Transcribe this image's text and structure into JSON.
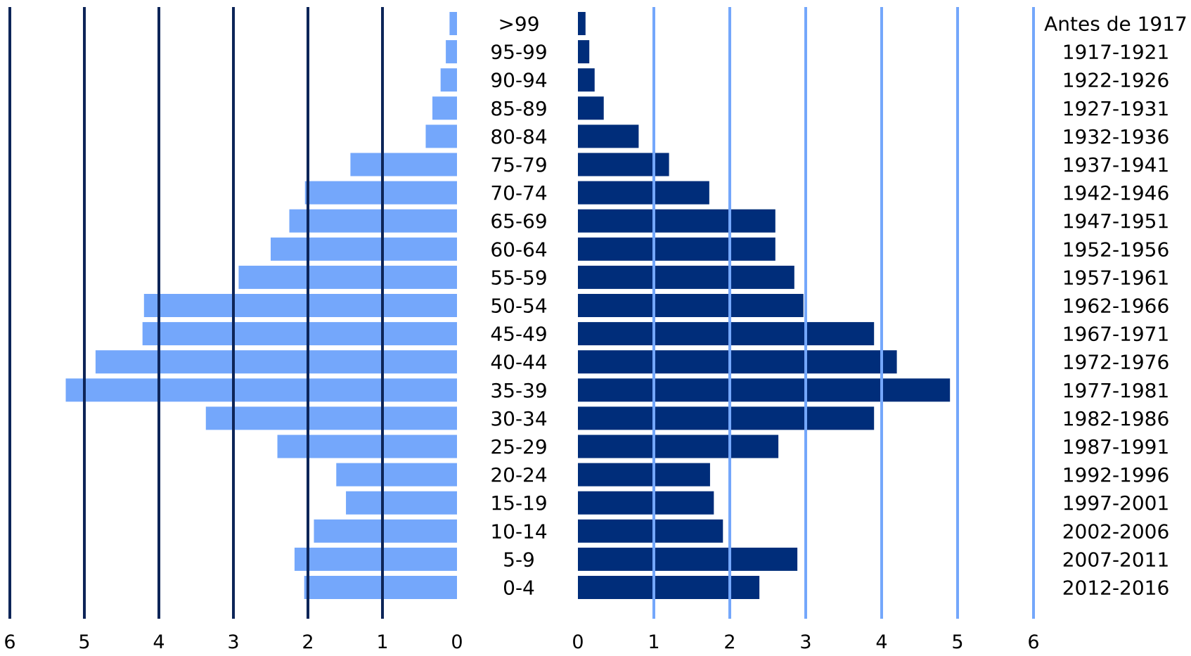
{
  "chart_data": {
    "type": "bar",
    "subtype": "population-pyramid",
    "categories": [
      ">99",
      "95-99",
      "90-94",
      "85-89",
      "80-84",
      "75-79",
      "70-74",
      "65-69",
      "60-64",
      "55-59",
      "50-54",
      "45-49",
      "40-44",
      "35-39",
      "30-34",
      "25-29",
      "20-24",
      "15-19",
      "10-14",
      "5-9",
      "0-4"
    ],
    "birth_cohorts": [
      "Antes de 1917",
      "1917-1921",
      "1922-1926",
      "1927-1931",
      "1932-1936",
      "1937-1941",
      "1942-1946",
      "1947-1951",
      "1952-1956",
      "1957-1961",
      "1962-1966",
      "1967-1971",
      "1972-1976",
      "1977-1981",
      "1982-1986",
      "1987-1991",
      "1992-1996",
      "1997-2001",
      "2002-2006",
      "2007-2011",
      "2012-2016"
    ],
    "series": [
      {
        "side": "left",
        "color": "#74a7fb",
        "values": [
          0.1,
          0.15,
          0.22,
          0.33,
          0.42,
          1.43,
          2.04,
          2.25,
          2.5,
          2.93,
          4.2,
          4.22,
          4.85,
          5.25,
          3.37,
          2.41,
          1.62,
          1.49,
          1.92,
          2.18,
          2.05
        ]
      },
      {
        "side": "right",
        "color": "#002d7a",
        "values": [
          0.1,
          0.15,
          0.22,
          0.34,
          0.8,
          1.2,
          1.73,
          2.6,
          2.6,
          2.85,
          2.97,
          3.9,
          4.2,
          4.9,
          3.9,
          2.64,
          1.74,
          1.79,
          1.91,
          2.89,
          2.39
        ]
      }
    ],
    "left_axis": {
      "direction": "reversed",
      "range": [
        0,
        6
      ],
      "ticks": [
        "0",
        "1",
        "2",
        "3",
        "4",
        "5",
        "6"
      ],
      "gridline_color": "#0d2558"
    },
    "right_axis": {
      "range": [
        0,
        6
      ],
      "ticks": [
        "0",
        "1",
        "2",
        "3",
        "4",
        "5",
        "6"
      ],
      "gridline_color": "#74a7fb"
    }
  }
}
